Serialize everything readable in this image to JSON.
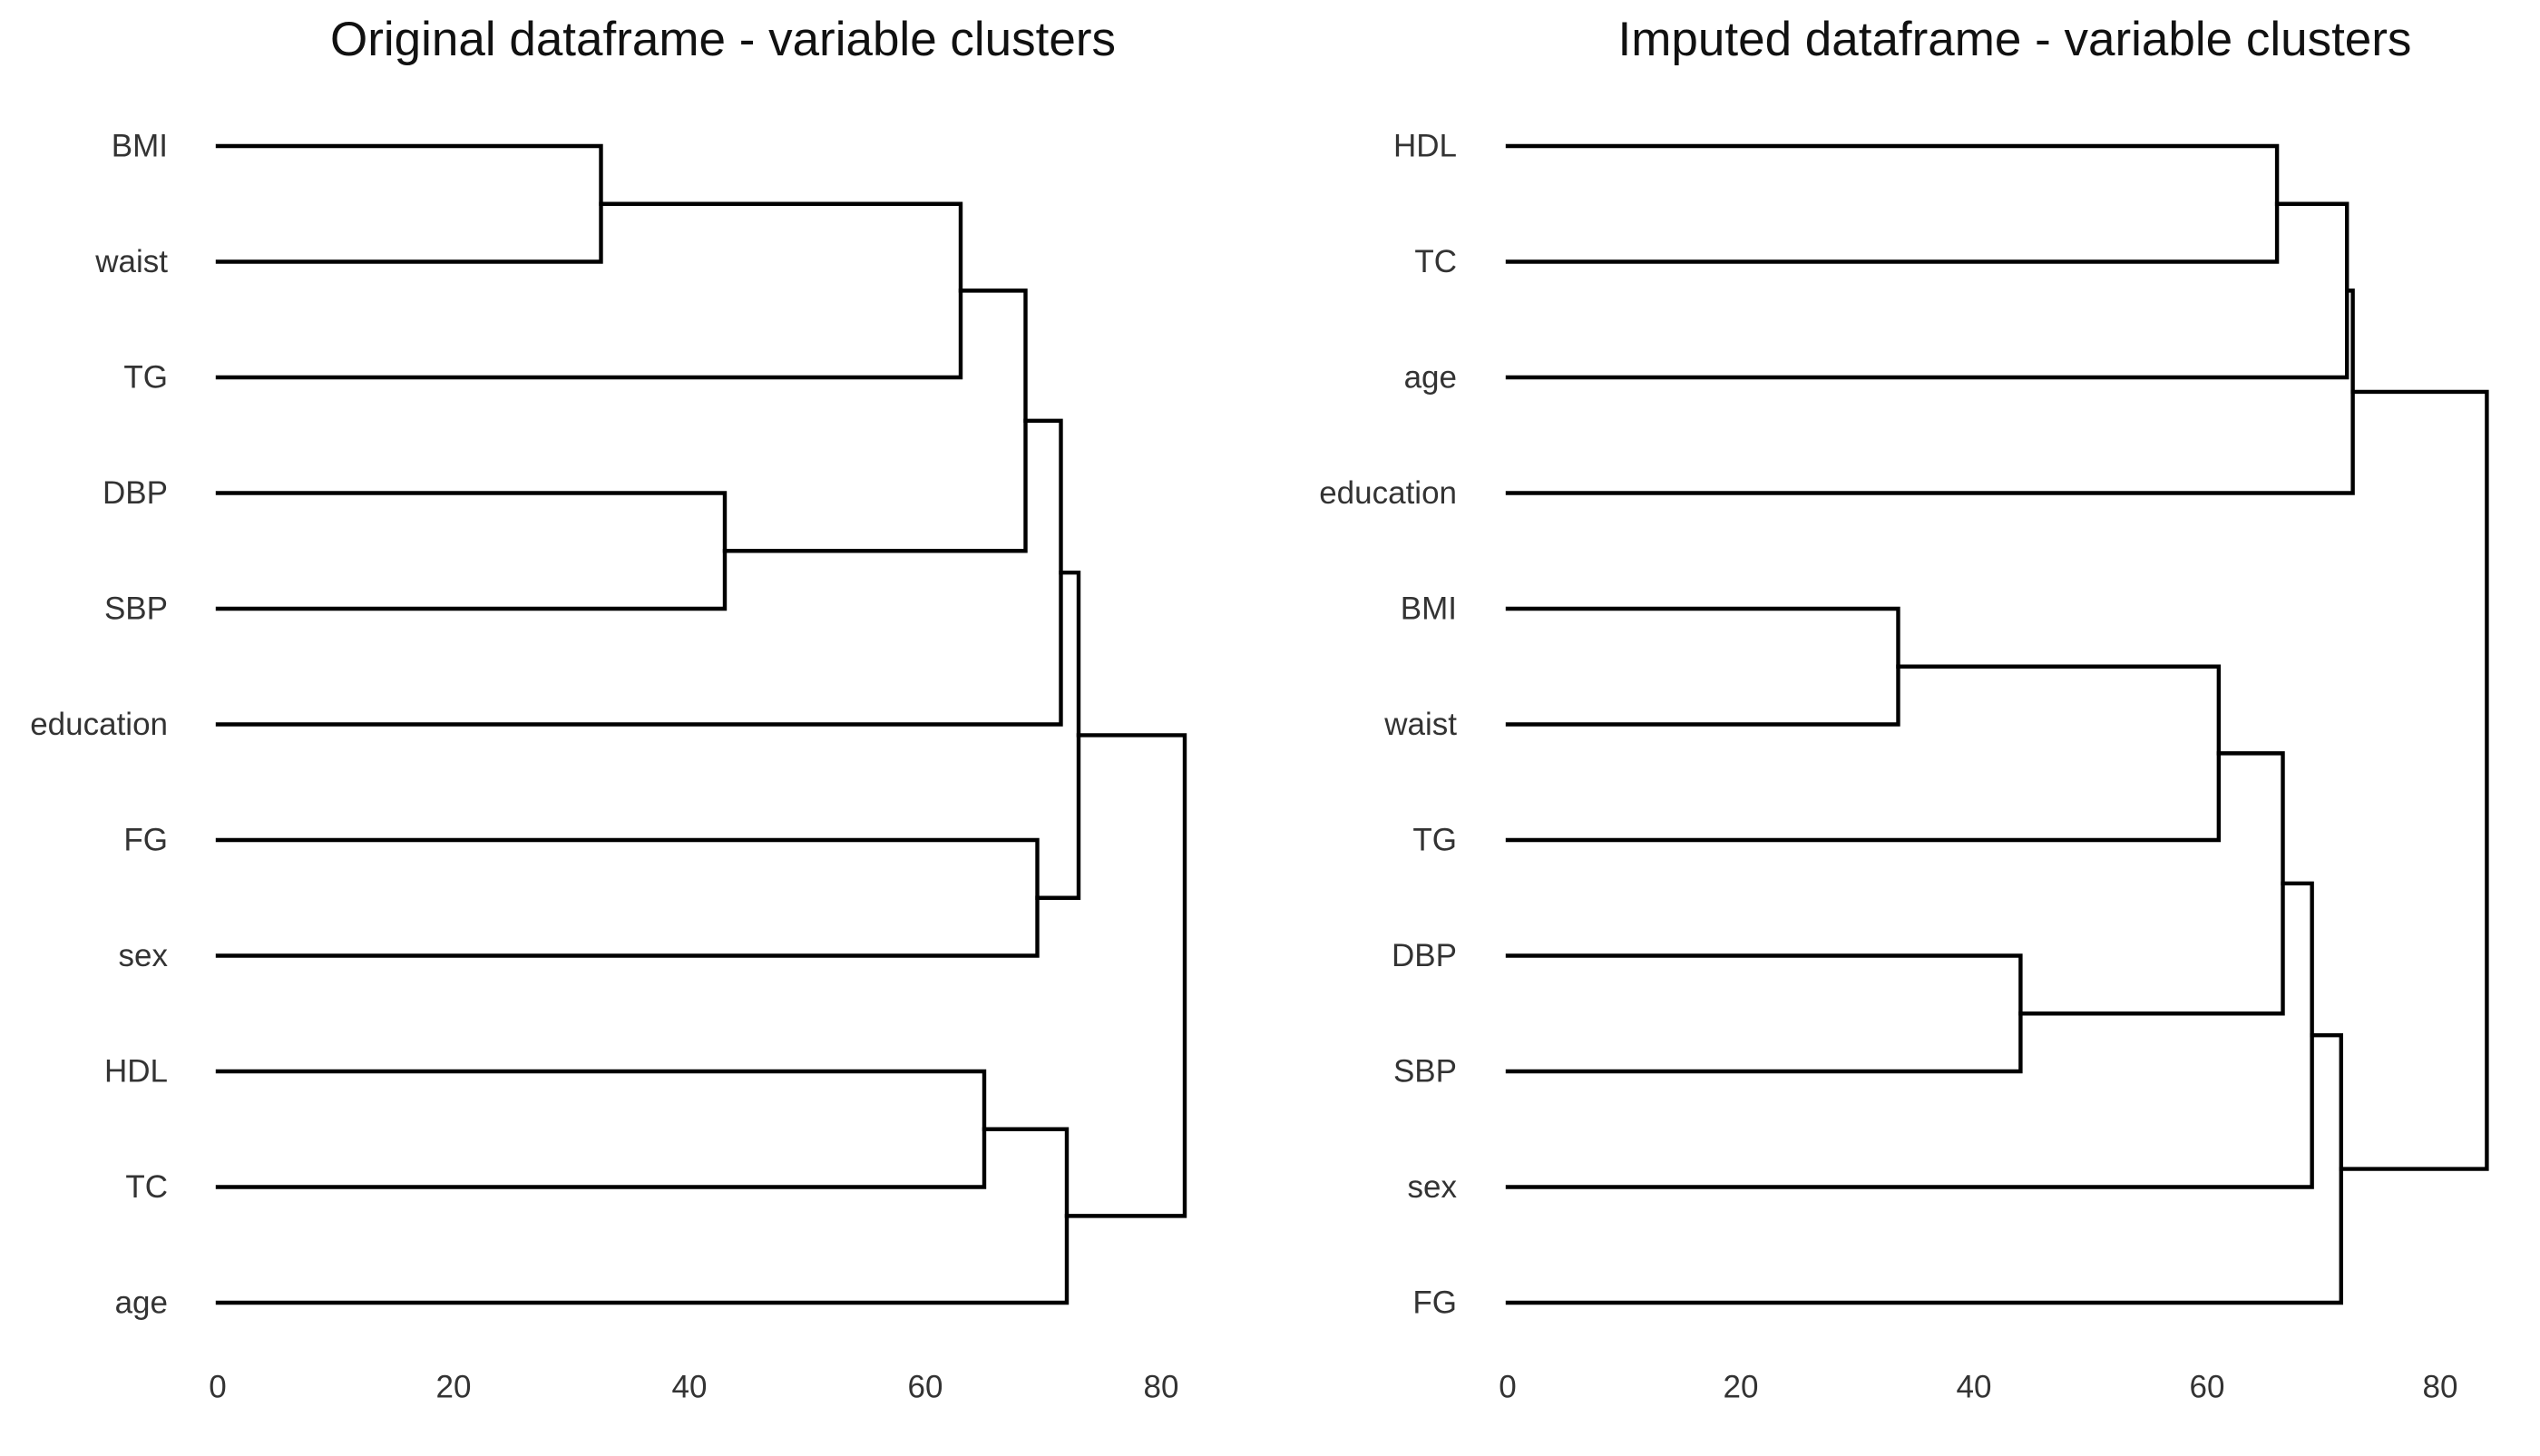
{
  "chart_data": [
    {
      "type": "dendrogram",
      "title": "Original dataframe - variable clusters",
      "orientation": "horizontal",
      "xlim": [
        0,
        82
      ],
      "xticks": [
        0,
        20,
        40,
        60,
        80
      ],
      "leaves": [
        "BMI",
        "waist",
        "TG",
        "DBP",
        "SBP",
        "education",
        "FG",
        "sex",
        "HDL",
        "TC",
        "age"
      ],
      "merges": [
        {
          "id": "m1",
          "left": "BMI",
          "right": "waist",
          "height": 32.5
        },
        {
          "id": "m2",
          "left": "m1",
          "right": "TG",
          "height": 63
        },
        {
          "id": "m3",
          "left": "DBP",
          "right": "SBP",
          "height": 43
        },
        {
          "id": "m4",
          "left": "m2",
          "right": "m3",
          "height": 68.5
        },
        {
          "id": "m5",
          "left": "m4",
          "right": "education",
          "height": 71.5
        },
        {
          "id": "m6",
          "left": "FG",
          "right": "sex",
          "height": 69.5
        },
        {
          "id": "m7",
          "left": "m5",
          "right": "m6",
          "height": 73
        },
        {
          "id": "m8",
          "left": "HDL",
          "right": "TC",
          "height": 65
        },
        {
          "id": "m9",
          "left": "m8",
          "right": "age",
          "height": 72
        },
        {
          "id": "m10",
          "left": "m7",
          "right": "m9",
          "height": 82
        }
      ]
    },
    {
      "type": "dendrogram",
      "title": "Imputed dataframe - variable clusters",
      "orientation": "horizontal",
      "xlim": [
        0,
        84
      ],
      "xticks": [
        0,
        20,
        40,
        60,
        80
      ],
      "leaves": [
        "HDL",
        "TC",
        "age",
        "education",
        "BMI",
        "waist",
        "TG",
        "DBP",
        "SBP",
        "sex",
        "FG"
      ],
      "merges": [
        {
          "id": "m1",
          "left": "HDL",
          "right": "TC",
          "height": 66
        },
        {
          "id": "m2",
          "left": "m1",
          "right": "age",
          "height": 72
        },
        {
          "id": "m3",
          "left": "m2",
          "right": "education",
          "height": 72.5
        },
        {
          "id": "m4",
          "left": "BMI",
          "right": "waist",
          "height": 33.5
        },
        {
          "id": "m5",
          "left": "m4",
          "right": "TG",
          "height": 61
        },
        {
          "id": "m6",
          "left": "DBP",
          "right": "SBP",
          "height": 44
        },
        {
          "id": "m7",
          "left": "m5",
          "right": "m6",
          "height": 66.5
        },
        {
          "id": "m8",
          "left": "m7",
          "right": "sex",
          "height": 69
        },
        {
          "id": "m9",
          "left": "m8",
          "right": "FG",
          "height": 71.5
        },
        {
          "id": "m10",
          "left": "m3",
          "right": "m9",
          "height": 84
        }
      ]
    }
  ]
}
